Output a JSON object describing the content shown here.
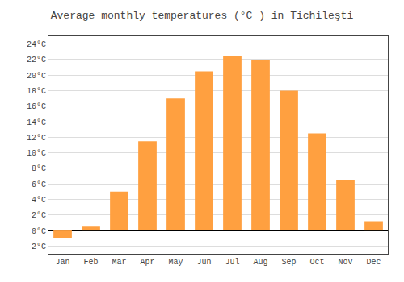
{
  "chart_data": {
    "type": "bar",
    "title": "Average monthly temperatures (°C ) in Tichileşti",
    "categories": [
      "Jan",
      "Feb",
      "Mar",
      "Apr",
      "May",
      "Jun",
      "Jul",
      "Aug",
      "Sep",
      "Oct",
      "Nov",
      "Dec"
    ],
    "values": [
      -1.0,
      0.5,
      5.0,
      11.5,
      17.0,
      20.5,
      22.5,
      22.0,
      18.0,
      12.5,
      6.5,
      1.2
    ],
    "color": "#FFA040",
    "ylim": [
      -3,
      25
    ],
    "yticks": [
      {
        "value": -2,
        "label": "-2°C"
      },
      {
        "value": 0,
        "label": "0°C"
      },
      {
        "value": 2,
        "label": "2°C"
      },
      {
        "value": 4,
        "label": "4°C"
      },
      {
        "value": 6,
        "label": "6°C"
      },
      {
        "value": 8,
        "label": "8°C"
      },
      {
        "value": 10,
        "label": "10°C"
      },
      {
        "value": 12,
        "label": "12°C"
      },
      {
        "value": 14,
        "label": "14°C"
      },
      {
        "value": 16,
        "label": "16°C"
      },
      {
        "value": 18,
        "label": "18°C"
      },
      {
        "value": 20,
        "label": "20°C"
      },
      {
        "value": 22,
        "label": "22°C"
      },
      {
        "value": 24,
        "label": "24°C"
      }
    ],
    "grid": true
  }
}
